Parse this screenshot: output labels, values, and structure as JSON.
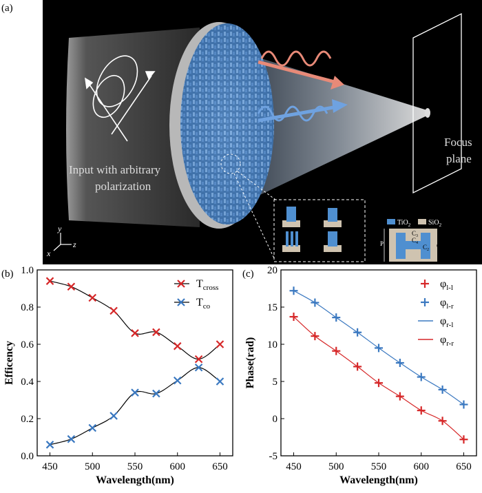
{
  "panel_a": {
    "label": "(a)",
    "input_caption_line1": "Input with arbitrary",
    "input_caption_line2": "polarization",
    "focus_caption_line1": "Focus",
    "focus_caption_line2": "plane",
    "axes": {
      "y": "y",
      "x": "x",
      "z": "z"
    },
    "legend": {
      "tio2": "TiO",
      "tio2_sub": "2",
      "sio2": "SiO",
      "sio2_sub": "2"
    },
    "unit_cell_labels": {
      "c1": "C",
      "c1_sub": "1",
      "c2": "C",
      "c2_sub": "2",
      "c3": "C",
      "c3_sub": "3",
      "c4": "C",
      "c4_sub": "4",
      "p": "P"
    },
    "colors": {
      "tio2": "#4f8fd0",
      "sio2": "#cfc3b0",
      "background": "#000000",
      "red_beam": "#e88a78",
      "blue_beam": "#6fa2e0"
    }
  },
  "chart_data": [
    {
      "type": "line",
      "panel_label": "(b)",
      "title": "",
      "xlabel": "Wavelength(nm)",
      "ylabel": "Efficency",
      "xlim": [
        435,
        665
      ],
      "ylim": [
        0.0,
        1.0
      ],
      "xticks": [
        450,
        500,
        550,
        600,
        650
      ],
      "yticks": [
        0.0,
        0.2,
        0.4,
        0.6,
        0.8,
        1.0
      ],
      "ytick_labels": [
        "0.0",
        "0.2",
        "0.4",
        "0.6",
        "0.8",
        "1.0"
      ],
      "grid": false,
      "legend_position": "top-right",
      "x": [
        450,
        475,
        500,
        525,
        550,
        575,
        600,
        625,
        650
      ],
      "series": [
        {
          "name": "T",
          "name_sub": "cross",
          "marker": "x",
          "marker_color": "#d62728",
          "line_color": "#000000",
          "values": [
            0.94,
            0.91,
            0.85,
            0.78,
            0.66,
            0.665,
            0.59,
            0.52,
            0.6
          ]
        },
        {
          "name": "T",
          "name_sub": "co",
          "marker": "x",
          "marker_color": "#3a78c0",
          "line_color": "#000000",
          "values": [
            0.06,
            0.09,
            0.15,
            0.215,
            0.34,
            0.335,
            0.405,
            0.475,
            0.4
          ]
        }
      ]
    },
    {
      "type": "line",
      "panel_label": "(c)",
      "title": "",
      "xlabel": "Wavelength(nm)",
      "ylabel": "Phase(rad)",
      "xlim": [
        435,
        665
      ],
      "ylim": [
        -5,
        20
      ],
      "xticks": [
        450,
        500,
        550,
        600,
        650
      ],
      "yticks": [
        -5,
        0,
        5,
        10,
        15,
        20
      ],
      "ytick_labels": [
        "-5",
        "0",
        "5",
        "10",
        "15",
        "20"
      ],
      "grid": false,
      "legend_position": "top-right",
      "x": [
        450,
        475,
        500,
        525,
        550,
        575,
        600,
        625,
        650
      ],
      "series": [
        {
          "name": "φ",
          "name_sub": "l-l",
          "marker": "+",
          "marker_color": "#d62728",
          "line_color": null,
          "values": [
            13.7,
            11.1,
            9.1,
            7.0,
            4.8,
            3.0,
            1.1,
            -0.3,
            -2.8
          ]
        },
        {
          "name": "φ",
          "name_sub": "l-r",
          "marker": "+",
          "marker_color": "#3a78c0",
          "line_color": null,
          "values": [
            17.2,
            15.6,
            13.6,
            11.6,
            9.5,
            7.5,
            5.6,
            3.9,
            1.9
          ]
        },
        {
          "name": "φ",
          "name_sub": "r-l",
          "marker": "line",
          "marker_color": null,
          "line_color": "#3a78c0",
          "values": [
            17.2,
            15.6,
            13.6,
            11.6,
            9.5,
            7.5,
            5.6,
            3.9,
            1.9
          ]
        },
        {
          "name": "φ",
          "name_sub": "r-r",
          "marker": "line",
          "marker_color": null,
          "line_color": "#d62728",
          "values": [
            13.7,
            11.1,
            9.1,
            7.0,
            4.8,
            3.0,
            1.1,
            -0.3,
            -2.8
          ]
        }
      ]
    }
  ]
}
